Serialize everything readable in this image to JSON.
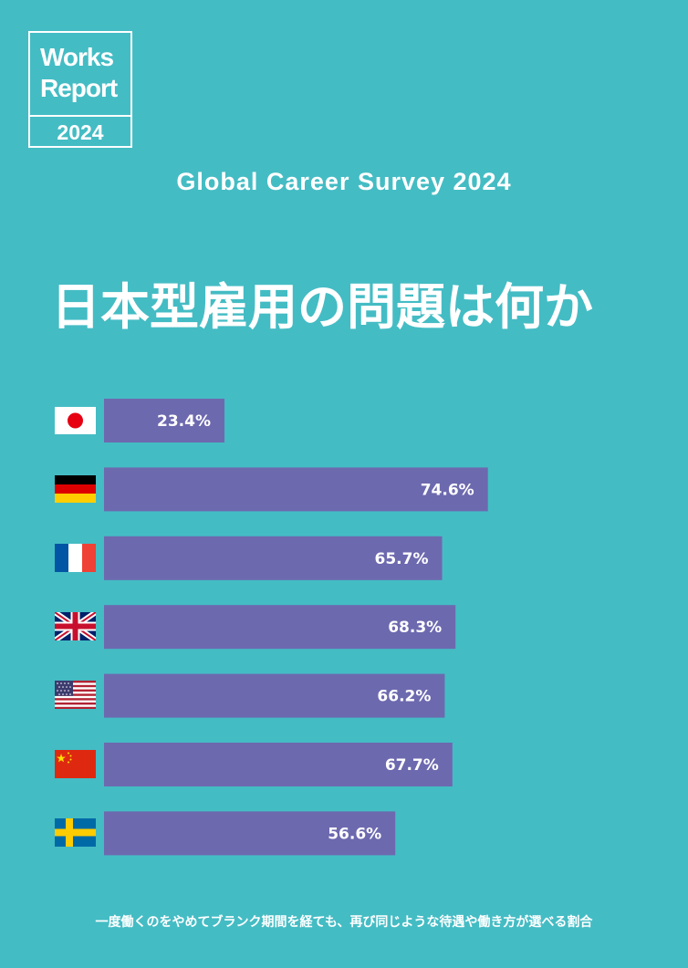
{
  "logo": {
    "line1": "Works",
    "line2": "Report",
    "year": "2024"
  },
  "survey_title": "Global Career Survey 2024",
  "main_title": "日本型雇用の問題は何か",
  "colors": {
    "background": "#44BCC4",
    "bar": "#6D69AF",
    "text": "#FFFFFF"
  },
  "chart_data": {
    "type": "bar",
    "orientation": "horizontal",
    "categories": [
      "Japan",
      "Germany",
      "France",
      "United Kingdom",
      "United States",
      "China",
      "Sweden"
    ],
    "category_icons": [
      "japan-flag-icon",
      "germany-flag-icon",
      "france-flag-icon",
      "uk-flag-icon",
      "usa-flag-icon",
      "china-flag-icon",
      "sweden-flag-icon"
    ],
    "values": [
      23.4,
      74.6,
      65.7,
      68.3,
      66.2,
      67.7,
      56.6
    ],
    "value_labels": [
      "23.4%",
      "74.6%",
      "65.7%",
      "68.3%",
      "66.2%",
      "67.7%",
      "56.6%"
    ],
    "unit": "%",
    "xlim": [
      0,
      100
    ]
  },
  "footer_text": "一度働くのをやめてブランク期間を経ても、再び同じような待遇や働き方が選べる割合"
}
